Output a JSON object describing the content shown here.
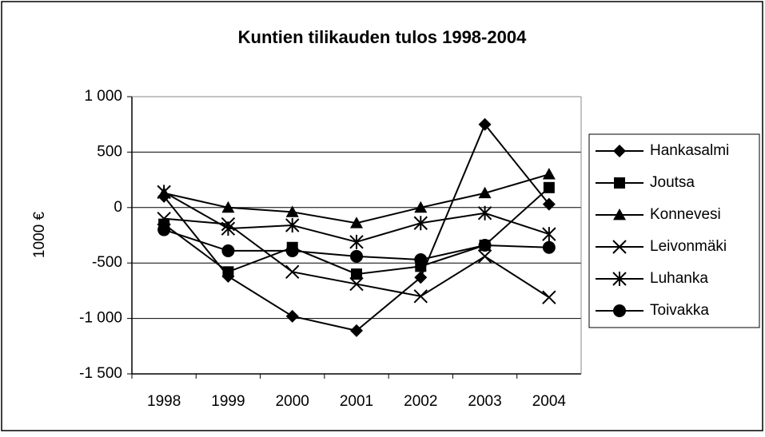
{
  "chart_data": {
    "type": "line",
    "title": "Kuntien tilikauden tulos 1998-2004",
    "y_label": "1000 €",
    "categories": [
      "1998",
      "1999",
      "2000",
      "2001",
      "2002",
      "2003",
      "2004"
    ],
    "series": [
      {
        "name": "Hankasalmi",
        "color": "#000000",
        "marker": "diamond",
        "values": [
          100,
          -620,
          -980,
          -1110,
          -630,
          750,
          30
        ]
      },
      {
        "name": "Joutsa",
        "color": "#000000",
        "marker": "square",
        "values": [
          -150,
          -580,
          -360,
          -600,
          -530,
          -340,
          180
        ]
      },
      {
        "name": "Konnevesi",
        "color": "#000000",
        "marker": "triangle",
        "values": [
          130,
          0,
          -40,
          -140,
          0,
          130,
          300
        ]
      },
      {
        "name": "Leivonmäki",
        "color": "#000000",
        "marker": "x",
        "values": [
          -100,
          -150,
          -580,
          -690,
          -800,
          -440,
          -810
        ]
      },
      {
        "name": "Luhanka",
        "color": "#000000",
        "marker": "star",
        "values": [
          140,
          -190,
          -160,
          -310,
          -140,
          -50,
          -240
        ]
      },
      {
        "name": "Toivakka",
        "color": "#000000",
        "marker": "circle",
        "values": [
          -200,
          -390,
          -390,
          -440,
          -470,
          -340,
          -360
        ]
      }
    ],
    "ylim": [
      -1500,
      1000
    ],
    "yticks": [
      {
        "value": -1500,
        "label": "-1 500"
      },
      {
        "value": -1000,
        "label": "-1 000"
      },
      -500,
      0,
      500,
      {
        "value": 1000,
        "label": "1 000"
      }
    ],
    "grid": true,
    "legend": "right"
  }
}
